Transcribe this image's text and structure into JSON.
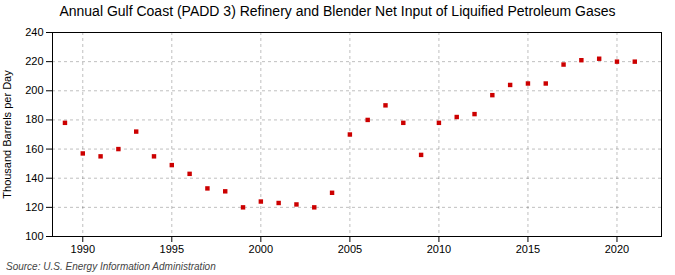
{
  "chart_data": {
    "type": "scatter",
    "title": "Annual Gulf Coast (PADD 3) Refinery and Blender Net Input of Liquified Petroleum Gases",
    "ylabel": "Thousand Barrels per Day",
    "annotations": [
      "Source: U.S. Energy Information Administration"
    ],
    "x": [
      1989,
      1990,
      1991,
      1992,
      1993,
      1994,
      1995,
      1996,
      1997,
      1998,
      1999,
      2000,
      2001,
      2002,
      2003,
      2004,
      2005,
      2006,
      2007,
      2008,
      2009,
      2010,
      2011,
      2012,
      2013,
      2014,
      2015,
      2016,
      2017,
      2018,
      2019,
      2020,
      2021
    ],
    "values": [
      178,
      157,
      155,
      160,
      172,
      155,
      149,
      143,
      133,
      131,
      120,
      124,
      123,
      122,
      120,
      130,
      170,
      180,
      190,
      178,
      156,
      178,
      182,
      184,
      197,
      204,
      205,
      205,
      218,
      221,
      222,
      220,
      220
    ],
    "color": "#cc0000",
    "marker": "square",
    "xlim": [
      1988.3,
      2022.5
    ],
    "xticks": [
      1990,
      1995,
      2000,
      2005,
      2010,
      2015,
      2020
    ],
    "ylim": [
      100,
      240
    ],
    "yticks": [
      100,
      120,
      140,
      160,
      180,
      200,
      220,
      240
    ],
    "grid": true
  }
}
